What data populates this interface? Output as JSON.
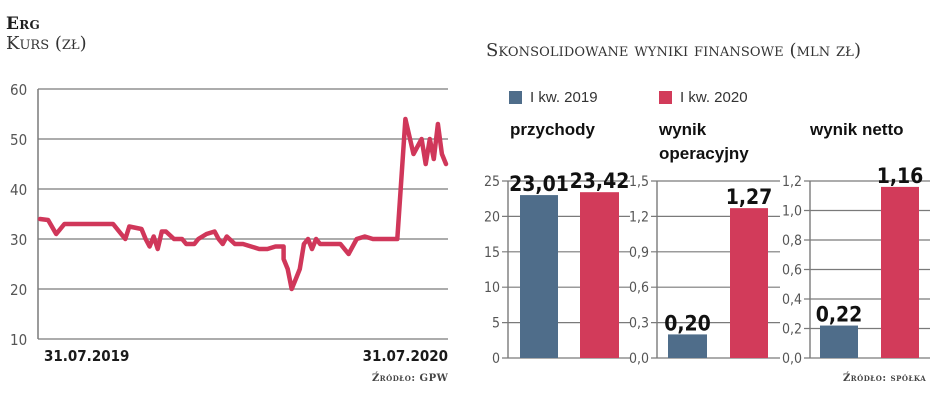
{
  "left": {
    "company": "Erg",
    "subtitle": "Kurs (zł)",
    "source": "Źródło: GPW"
  },
  "right": {
    "title": "Skonsolidowane wyniki finansowe (mln zł)",
    "source": "Źródło: spółka",
    "legend": [
      {
        "label": "I kw. 2019",
        "color": "#4f6d8a"
      },
      {
        "label": "I kw. 2020",
        "color": "#d23b5a"
      }
    ],
    "panels": [
      {
        "label": "przychody"
      },
      {
        "label_line1": "wynik",
        "label_line2": "operacyjny"
      },
      {
        "label": "wynik netto"
      }
    ]
  },
  "colors": {
    "line": "#d0375a",
    "series_2019": "#4f6d8a",
    "series_2020": "#d23b5a",
    "grid": "#7a7a7a"
  },
  "chart_data": [
    {
      "type": "line",
      "title": "Erg — Kurs (zł)",
      "xlabel": "",
      "ylabel": "zł",
      "ylim": [
        10,
        60
      ],
      "yticks": [
        10,
        20,
        30,
        40,
        50,
        60
      ],
      "xtick_labels": [
        "31.07.2019",
        "31.07.2020"
      ],
      "grid": true,
      "series": [
        {
          "name": "Kurs",
          "x_fraction": [
            0.0,
            0.02,
            0.04,
            0.05,
            0.06,
            0.08,
            0.1,
            0.14,
            0.18,
            0.2,
            0.21,
            0.22,
            0.25,
            0.26,
            0.27,
            0.28,
            0.29,
            0.3,
            0.31,
            0.33,
            0.35,
            0.36,
            0.38,
            0.39,
            0.41,
            0.43,
            0.44,
            0.45,
            0.46,
            0.48,
            0.5,
            0.52,
            0.54,
            0.56,
            0.58,
            0.6,
            0.6,
            0.61,
            0.62,
            0.63,
            0.64,
            0.65,
            0.66,
            0.67,
            0.68,
            0.69,
            0.7,
            0.72,
            0.74,
            0.76,
            0.78,
            0.8,
            0.82,
            0.84,
            0.86,
            0.88,
            0.9,
            0.92,
            0.94,
            0.95,
            0.96,
            0.97,
            0.98,
            0.99,
            1.0
          ],
          "values": [
            34,
            33.8,
            31,
            32,
            33,
            33,
            33,
            33,
            33,
            31,
            30,
            32.5,
            32,
            30,
            28.5,
            30.5,
            28,
            31.5,
            31.5,
            30,
            30,
            29,
            29,
            30,
            31,
            31.5,
            30,
            29,
            30.5,
            29,
            29,
            28.5,
            28,
            28,
            28.5,
            28.5,
            26,
            24,
            20,
            22,
            24,
            29,
            30,
            28,
            30,
            29,
            29,
            29,
            29,
            27,
            30,
            30.5,
            30,
            30,
            30,
            30,
            54,
            47,
            50,
            45,
            50,
            46,
            53,
            47,
            45
          ]
        }
      ]
    },
    {
      "type": "bar",
      "title": "przychody",
      "categories": [
        "I kw. 2019",
        "I kw. 2020"
      ],
      "values": [
        23.01,
        23.42
      ],
      "value_labels": [
        "23,01",
        "23,42"
      ],
      "ylim": [
        0,
        25
      ],
      "yticks": [
        "0",
        "5",
        "10",
        "15",
        "20",
        "25"
      ],
      "grid": true
    },
    {
      "type": "bar",
      "title": "wynik operacyjny",
      "categories": [
        "I kw. 2019",
        "I kw. 2020"
      ],
      "values": [
        0.2,
        1.27
      ],
      "value_labels": [
        "0,20",
        "1,27"
      ],
      "ylim": [
        0,
        1.5
      ],
      "yticks": [
        "0,0",
        "0,3",
        "0,6",
        "0,9",
        "1,2",
        "1,5"
      ],
      "grid": true
    },
    {
      "type": "bar",
      "title": "wynik netto",
      "categories": [
        "I kw. 2019",
        "I kw. 2020"
      ],
      "values": [
        0.22,
        1.16
      ],
      "value_labels": [
        "0,22",
        "1,16"
      ],
      "ylim": [
        0,
        1.2
      ],
      "yticks": [
        "0,0",
        "0,2",
        "0,4",
        "0,6",
        "0,8",
        "1,0",
        "1,2"
      ],
      "grid": true
    }
  ]
}
